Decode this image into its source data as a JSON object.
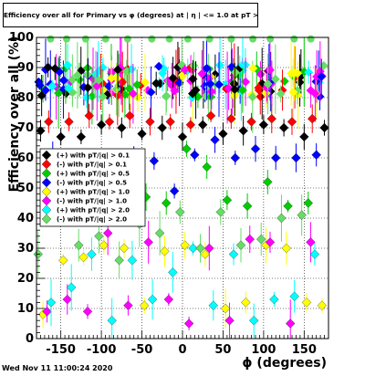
{
  "title": "Efficiency over all for Primary vs φ (degrees) at | η | <= 1.0 at pT > 0.11",
  "footer": "Wed Nov 11 11:00:24 2020",
  "chart_data": {
    "type": "scatter",
    "xlabel": "ϕ (degrees)",
    "ylabel": "Efficiency over all (%)",
    "xlim": [
      -180,
      180
    ],
    "ylim": [
      0,
      100
    ],
    "x_ticks": [
      -150,
      -100,
      -50,
      0,
      50,
      100,
      150
    ],
    "y_ticks": [
      0,
      10,
      20,
      30,
      40,
      50,
      60,
      70,
      80,
      90,
      100
    ],
    "grid": true,
    "legend_position": "left-middle",
    "series": [
      {
        "name": "(+) with pT/|q| > 0.1",
        "color": "#000000",
        "x": [
          -175,
          -150,
          -125,
          -100,
          -75,
          -50,
          -25,
          0,
          25,
          50,
          75,
          100,
          125,
          150,
          175
        ],
        "values": [
          69,
          67,
          67,
          71,
          70,
          68,
          70,
          67,
          71,
          68,
          69,
          71,
          70,
          67,
          70
        ]
      },
      {
        "name": "(-) with pT/|q| > 0.1",
        "color": "#ff0000",
        "x": [
          -165,
          -140,
          -115,
          -90,
          -65,
          -40,
          -15,
          10,
          35,
          60,
          85,
          110,
          135,
          160
        ],
        "values": [
          72,
          72,
          74,
          72,
          74,
          72,
          72,
          71,
          74,
          73,
          72,
          73,
          72,
          73
        ]
      },
      {
        "name": "(+) with pT/|q| > 0.5",
        "color": "#00cc00",
        "x": [
          -170,
          -145,
          -120,
          -95,
          -70,
          -45,
          -20,
          5,
          30,
          55,
          80,
          105,
          130,
          155
        ],
        "values": [
          55,
          46,
          44,
          49,
          51,
          47,
          45,
          63,
          57,
          46,
          44,
          52,
          44,
          45
        ]
      },
      {
        "name": "(-) with pT/|q| > 0.5",
        "color": "#0000ff",
        "x": [
          -160,
          -135,
          -110,
          -85,
          -60,
          -35,
          -10,
          15,
          40,
          65,
          90,
          115,
          140,
          165
        ],
        "values": [
          61,
          53,
          53,
          55,
          61,
          59,
          49,
          61,
          66,
          60,
          63,
          60,
          60,
          61
        ]
      },
      {
        "name": "(+) with pT/|q| > 1.0",
        "color": "#ffff00",
        "x": [
          -172,
          -147,
          -122,
          -97,
          -72,
          -47,
          -22,
          3,
          28,
          53,
          78,
          103,
          128,
          153,
          172
        ],
        "values": [
          8,
          26,
          27,
          31,
          30,
          11,
          29,
          31,
          28,
          10,
          12,
          31,
          30,
          12,
          11
        ]
      },
      {
        "name": "(-) with pT/|q| > 1.0",
        "color": "#ff00ff",
        "x": [
          -167,
          -142,
          -117,
          -92,
          -67,
          -42,
          -17,
          8,
          33,
          58,
          83,
          108,
          133,
          158
        ],
        "values": [
          9,
          13,
          9,
          35,
          11,
          32,
          13,
          5,
          30,
          6,
          33,
          32,
          5,
          32
        ]
      },
      {
        "name": "(+) with pT/|q| > 2.0",
        "color": "#00ffff",
        "x": [
          -162,
          -137,
          -112,
          -87,
          -62,
          -37,
          -12,
          13,
          38,
          63,
          88,
          113,
          138,
          163
        ],
        "values": [
          12,
          17,
          28,
          6,
          26,
          13,
          22,
          30,
          11,
          28,
          6,
          13,
          14,
          28
        ]
      },
      {
        "name": "(-) with pT/|q| > 2.0",
        "color": "#66dd66",
        "x": [
          -178,
          -153,
          -128,
          -103,
          -78,
          -53,
          -28,
          -3,
          22,
          47,
          72,
          97,
          122,
          147
        ],
        "values": [
          28,
          40,
          31,
          34,
          26,
          38,
          35,
          42,
          30,
          42,
          31,
          33,
          40,
          41
        ]
      }
    ],
    "band": {
      "range": [
        80,
        100
      ],
      "note": "dense scatter of many colored markers with error bars near the top of the plot"
    }
  }
}
